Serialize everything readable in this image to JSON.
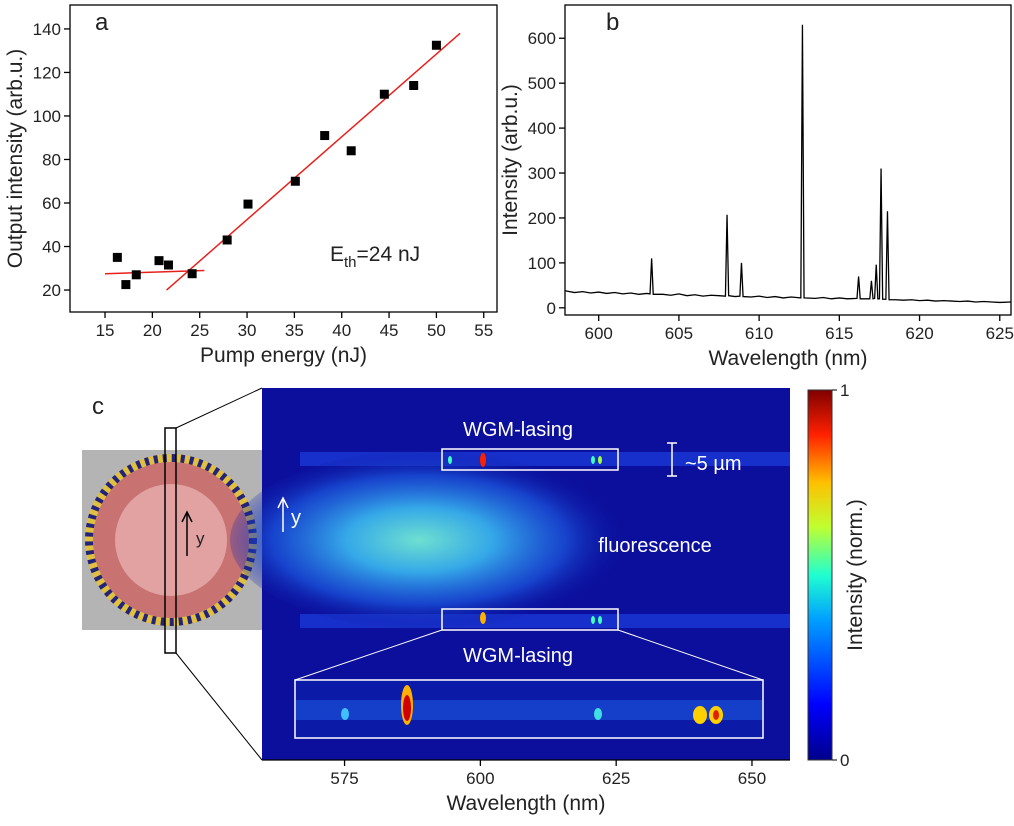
{
  "chart_data": [
    {
      "type": "scatter",
      "panel": "a",
      "xlabel": "Pump energy (nJ)",
      "ylabel": "Output intensity (arb.u.)",
      "x": [
        16.3,
        17.2,
        18.3,
        20.7,
        21.7,
        24.2,
        27.9,
        30.1,
        35.1,
        38.2,
        41,
        44.5,
        47.6,
        50
      ],
      "values": [
        35,
        22.5,
        27,
        33.5,
        31.5,
        27.5,
        43,
        59.5,
        70,
        91,
        84,
        110,
        114,
        132.5
      ],
      "color": "#000000",
      "fit_lines": [
        {
          "x": [
            15,
            25.5
          ],
          "values": [
            27.5,
            29
          ]
        },
        {
          "x": [
            21.5,
            52.5
          ],
          "values": [
            20,
            138
          ]
        }
      ],
      "fit_color": "#e8201c",
      "annotation": [
        "E",
        "th",
        "=24 nJ"
      ],
      "xlim": [
        11.3,
        56.4
      ],
      "ylim": [
        9.9,
        151
      ],
      "xticks": [
        15,
        20,
        25,
        30,
        35,
        40,
        45,
        50,
        55
      ],
      "yticks": [
        20,
        40,
        60,
        80,
        100,
        120,
        140
      ]
    },
    {
      "type": "line",
      "panel": "b",
      "xlabel": "Wavelength (nm)",
      "ylabel": "Intensity (arb.u.)",
      "color": "#000000",
      "x": [
        597.9,
        598.5,
        599,
        599.5,
        600,
        600.5,
        601,
        601.5,
        602,
        602.5,
        603,
        603.2,
        603.3,
        603.4,
        604,
        604.5,
        605,
        605.5,
        606,
        606.5,
        607,
        607.5,
        607.9,
        608.0,
        608.1,
        608.5,
        608.8,
        608.9,
        609.0,
        609.5,
        610,
        610.5,
        611,
        611.5,
        612,
        612.6,
        612.7,
        612.8,
        613.5,
        614,
        614.5,
        615,
        615.5,
        616.1,
        616.2,
        616.3,
        616.9,
        617.0,
        617.1,
        617.2,
        617.3,
        617.4,
        617.5,
        617.6,
        617.7,
        617.9,
        618.0,
        618.1,
        618.5,
        619,
        619.5,
        620,
        620.5,
        621,
        621.5,
        622,
        622.5,
        623,
        623.5,
        624,
        624.5,
        625,
        625.7
      ],
      "values": [
        38,
        34,
        36,
        33,
        35,
        32,
        34,
        31,
        33,
        30,
        32,
        31,
        110,
        30,
        30,
        28,
        31,
        27,
        29,
        26,
        28,
        27,
        26,
        207,
        27,
        25,
        26,
        100,
        25,
        24,
        26,
        23,
        25,
        22,
        24,
        22,
        630,
        22,
        21,
        23,
        20,
        22,
        20,
        21,
        70,
        20,
        20,
        60,
        20,
        21,
        96,
        20,
        20,
        310,
        19,
        19,
        215,
        18,
        18,
        17,
        18,
        16,
        17,
        15,
        16,
        15,
        14,
        15,
        13,
        14,
        13,
        12,
        13
      ],
      "xlim": [
        597.9,
        625.7
      ],
      "ylim": [
        -16,
        674
      ],
      "xticks": [
        600,
        605,
        610,
        615,
        620,
        625
      ],
      "yticks": [
        0,
        100,
        200,
        300,
        400,
        500,
        600
      ]
    },
    {
      "type": "image",
      "panel": "c",
      "xlabel": "Wavelength (nm)",
      "annotations": [
        "WGM-lasing",
        "WGM-lasing",
        "~5 µm",
        "fluorescence",
        "y",
        "y"
      ],
      "xlim": [
        559.8,
        657
      ],
      "xticks": [
        575,
        600,
        625,
        650
      ],
      "colorbar": {
        "label": "Intensity (norm.)",
        "lim": [
          0,
          1
        ],
        "ticks": [
          0,
          1
        ]
      }
    }
  ]
}
